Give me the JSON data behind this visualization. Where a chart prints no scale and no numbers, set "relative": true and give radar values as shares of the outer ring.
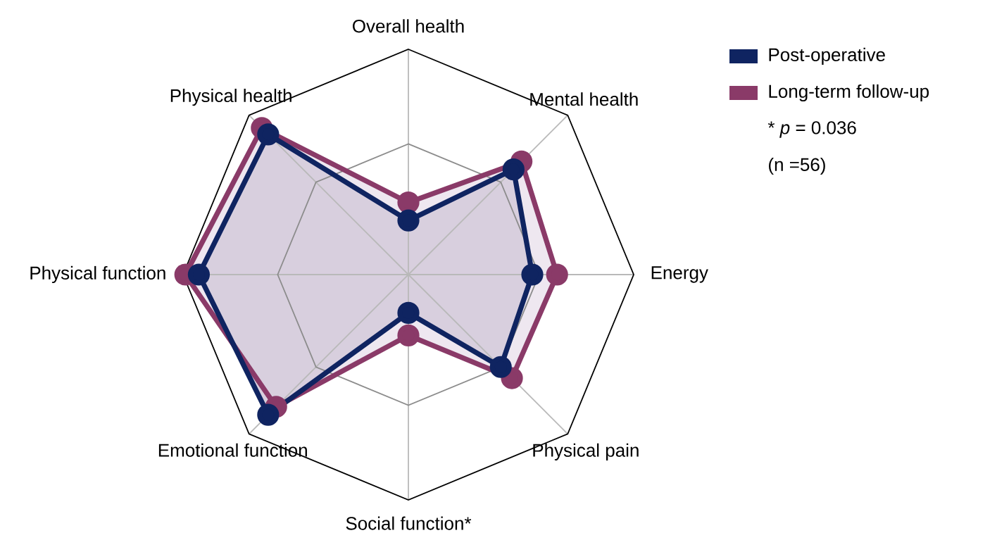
{
  "chart_data": {
    "type": "radar",
    "relative": true,
    "grid": true,
    "legend": "top right",
    "marker": "circle",
    "categories": [
      "Overall health",
      "Mental health",
      "Energy",
      "Physical pain",
      "Social function*",
      "Emotional function",
      "Physical function",
      "Physical health"
    ],
    "series": [
      {
        "name": "Post-operative",
        "color": "#0f2461",
        "values": [
          0.24,
          0.66,
          0.55,
          0.58,
          0.17,
          0.88,
          0.93,
          0.88
        ]
      },
      {
        "name": "Long-term follow-up",
        "color": "#8a3a68",
        "values": [
          0.32,
          0.71,
          0.66,
          0.65,
          0.27,
          0.83,
          0.99,
          0.92
        ]
      }
    ],
    "annotations": [
      "* *p* = 0.036",
      "(n =56)"
    ]
  }
}
